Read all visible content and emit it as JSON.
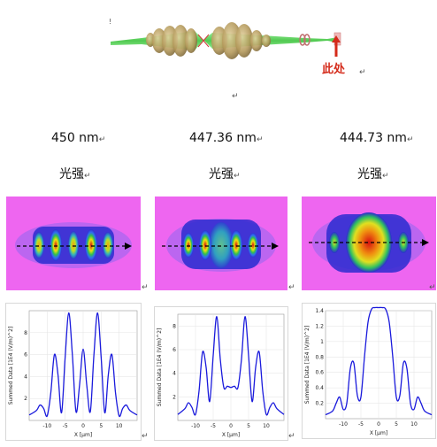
{
  "header": {
    "marker_label": "此处",
    "small_mark": "!"
  },
  "paragraph_mark": "↵",
  "columns": [
    {
      "wavelength": "450 nm",
      "intensity_label": "光强"
    },
    {
      "wavelength": "447.36 nm",
      "intensity_label": "光强"
    },
    {
      "wavelength": "444.73 nm",
      "intensity_label": "光强"
    }
  ],
  "colors": {
    "field_bg": "#ee66f0",
    "marker_red": "#d42a1a",
    "curve": "#1a1adc",
    "laser": "#3cd23c"
  },
  "chart_data": [
    {
      "type": "line",
      "xlabel": "X [µm]",
      "ylabel": "Summed Data [1E4 (V/m)^2]",
      "xlim": [
        -15,
        15
      ],
      "ylim": [
        0,
        10
      ],
      "x_ticks": [
        "-10",
        "-5",
        "0",
        "5",
        "10"
      ],
      "y_ticks": [
        "2",
        "4",
        "6",
        "8"
      ],
      "grid": true,
      "x": [
        -15,
        -13,
        -12,
        -11,
        -10,
        -9,
        -8,
        -7,
        -6,
        -5,
        -4,
        -3,
        -2,
        -1,
        0,
        1,
        2,
        3,
        4,
        5,
        6,
        7,
        8,
        9,
        10,
        11,
        12,
        13,
        15
      ],
      "values": [
        0.5,
        0.9,
        1.4,
        1.1,
        0.4,
        2.5,
        6.0,
        4.2,
        0.7,
        5.8,
        9.8,
        6.0,
        0.8,
        3.2,
        6.5,
        3.2,
        0.8,
        6.0,
        9.8,
        5.8,
        0.7,
        4.2,
        6.0,
        2.5,
        0.4,
        1.1,
        1.4,
        0.9,
        0.5
      ]
    },
    {
      "type": "line",
      "xlabel": "X [µm]",
      "ylabel": "Summed Data [1E4 (V/m)^2]",
      "xlim": [
        -15,
        15
      ],
      "ylim": [
        0,
        9
      ],
      "x_ticks": [
        "-10",
        "-5",
        "0",
        "5",
        "10"
      ],
      "y_ticks": [
        "2",
        "4",
        "6",
        "8"
      ],
      "grid": true,
      "x": [
        -15,
        -13,
        -12,
        -11,
        -10,
        -9,
        -8,
        -7,
        -6,
        -5,
        -4,
        -3,
        -2,
        -1,
        0,
        1,
        2,
        3,
        4,
        5,
        6,
        7,
        8,
        9,
        10,
        11,
        12,
        13,
        15
      ],
      "values": [
        0.5,
        1.0,
        1.5,
        1.1,
        0.5,
        2.5,
        5.8,
        4.5,
        1.6,
        5.5,
        8.8,
        5.2,
        2.8,
        2.9,
        2.8,
        2.9,
        2.8,
        5.2,
        8.8,
        5.5,
        1.6,
        4.5,
        5.8,
        2.5,
        0.5,
        1.1,
        1.5,
        1.0,
        0.5
      ]
    },
    {
      "type": "line",
      "xlabel": "X [µm]",
      "ylabel": "Summed Data [1E4 (V/m)^2]",
      "xlim": [
        -15,
        15
      ],
      "ylim": [
        0,
        1.4
      ],
      "x_ticks": [
        "-10",
        "-5",
        "0",
        "5",
        "10"
      ],
      "y_ticks": [
        "0.2",
        "0.4",
        "0.6",
        "0.8",
        "1",
        "1.2",
        "1.4"
      ],
      "grid": true,
      "x": [
        -15,
        -13,
        -12,
        -11,
        -10,
        -9,
        -8,
        -7,
        -6,
        -5,
        -4,
        -3,
        -2,
        -1,
        0,
        1,
        2,
        3,
        4,
        5,
        6,
        7,
        8,
        9,
        10,
        11,
        12,
        13,
        15
      ],
      "values": [
        0.05,
        0.1,
        0.2,
        0.28,
        0.12,
        0.2,
        0.65,
        0.72,
        0.3,
        0.28,
        0.8,
        1.25,
        1.42,
        1.44,
        1.44,
        1.44,
        1.42,
        1.25,
        0.8,
        0.28,
        0.3,
        0.72,
        0.65,
        0.2,
        0.12,
        0.28,
        0.2,
        0.1,
        0.05
      ]
    }
  ]
}
